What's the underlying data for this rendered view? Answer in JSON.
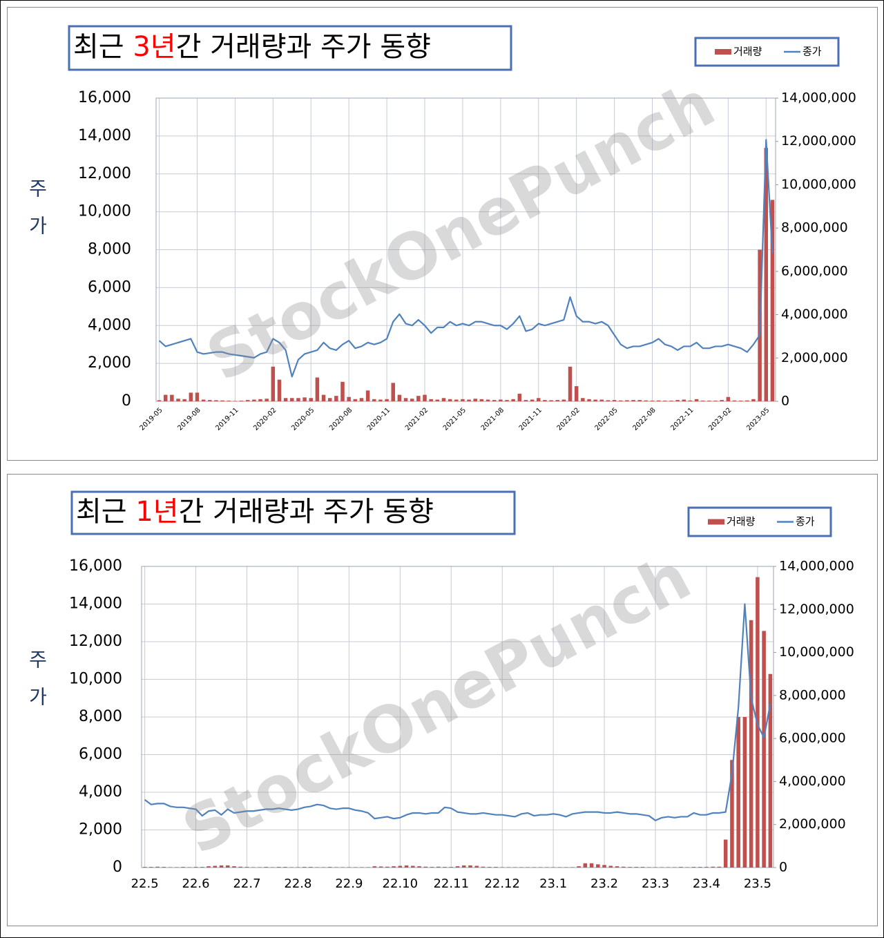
{
  "chart_data": [
    {
      "type": "combo",
      "title": [
        "최근 ",
        "3년",
        "간 거래량과 주가 동향"
      ],
      "title_colors": [
        "#000000",
        "#ff0000",
        "#000000"
      ],
      "ylabel": "주가",
      "watermark": "StockOnePunch",
      "xtick_rotation": -45,
      "categories": [
        "2019-05",
        null,
        null,
        null,
        null,
        null,
        "2019-08",
        null,
        null,
        null,
        null,
        null,
        "2019-11",
        null,
        null,
        null,
        null,
        null,
        "2020-02",
        null,
        null,
        null,
        null,
        null,
        "2020-05",
        null,
        null,
        null,
        null,
        null,
        "2020-08",
        null,
        null,
        null,
        null,
        null,
        "2020-11",
        null,
        null,
        null,
        null,
        null,
        "2021-02",
        null,
        null,
        null,
        null,
        null,
        "2021-05",
        null,
        null,
        null,
        null,
        null,
        "2021-08",
        null,
        null,
        null,
        null,
        null,
        "2021-11",
        null,
        null,
        null,
        null,
        null,
        "2022-02",
        null,
        null,
        null,
        null,
        null,
        "2022-05",
        null,
        null,
        null,
        null,
        null,
        "2022-08",
        null,
        null,
        null,
        null,
        null,
        "2022-11",
        null,
        null,
        null,
        null,
        null,
        "2023-02",
        null,
        null,
        null,
        null,
        null,
        "2023-05",
        null
      ],
      "series": [
        {
          "name": "거래량",
          "type": "bar",
          "axis": "y2",
          "color": "#c0504d",
          "values": [
            50000,
            300000,
            300000,
            120000,
            100000,
            400000,
            400000,
            80000,
            60000,
            50000,
            40000,
            30000,
            20000,
            30000,
            60000,
            80000,
            100000,
            120000,
            1600000,
            1000000,
            150000,
            150000,
            150000,
            180000,
            150000,
            1100000,
            300000,
            150000,
            250000,
            900000,
            200000,
            100000,
            150000,
            500000,
            100000,
            80000,
            100000,
            850000,
            300000,
            150000,
            120000,
            250000,
            300000,
            100000,
            80000,
            150000,
            100000,
            80000,
            100000,
            80000,
            120000,
            100000,
            80000,
            60000,
            80000,
            60000,
            100000,
            350000,
            60000,
            80000,
            150000,
            60000,
            50000,
            60000,
            80000,
            1600000,
            700000,
            150000,
            100000,
            80000,
            80000,
            50000,
            60000,
            40000,
            50000,
            60000,
            60000,
            40000,
            30000,
            40000,
            30000,
            30000,
            60000,
            80000,
            40000,
            100000,
            30000,
            30000,
            30000,
            60000,
            200000,
            40000,
            30000,
            40000,
            100000,
            7000000,
            11700000,
            9300000
          ]
        },
        {
          "name": "종가",
          "type": "line",
          "color": "#4f81bd",
          "values": [
            3200,
            2900,
            3000,
            3100,
            3200,
            3300,
            2600,
            2500,
            2550,
            2600,
            2600,
            2500,
            2450,
            2400,
            2350,
            2300,
            2500,
            2600,
            3300,
            3100,
            2700,
            1300,
            2200,
            2500,
            2600,
            2700,
            3100,
            2800,
            2700,
            3000,
            3200,
            2800,
            2900,
            3100,
            3000,
            3100,
            3300,
            4200,
            4600,
            4100,
            4000,
            4300,
            4000,
            3600,
            3900,
            3900,
            4200,
            4000,
            4100,
            4000,
            4200,
            4200,
            4100,
            4000,
            4000,
            3800,
            4100,
            4500,
            3700,
            3800,
            4100,
            4000,
            4100,
            4200,
            4300,
            5500,
            4500,
            4200,
            4200,
            4100,
            4200,
            4000,
            3500,
            3000,
            2800,
            2900,
            2900,
            3000,
            3100,
            3300,
            3000,
            2900,
            2700,
            2900,
            2900,
            3100,
            2800,
            2800,
            2900,
            2900,
            3000,
            2900,
            2800,
            2600,
            3000,
            3500,
            13800,
            7800
          ]
        }
      ],
      "ylim": [
        0,
        16000
      ],
      "yticks": [
        0,
        {
          "value": 2000,
          "label": "2,000"
        },
        {
          "value": 4000,
          "label": "4,000"
        },
        {
          "value": 6000,
          "label": "6,000"
        },
        {
          "value": 8000,
          "label": "8,000"
        },
        {
          "value": 10000,
          "label": "10,000"
        },
        {
          "value": 12000,
          "label": "12,000"
        },
        {
          "value": 14000,
          "label": "14,000"
        },
        {
          "value": 16000,
          "label": "16,000"
        }
      ],
      "y2lim": [
        0,
        14000000
      ],
      "y2ticks": [
        0,
        {
          "value": 2000000,
          "label": "2,000,000"
        },
        {
          "value": 4000000,
          "label": "4,000,000"
        },
        {
          "value": 6000000,
          "label": "6,000,000"
        },
        {
          "value": 8000000,
          "label": "8,000,000"
        },
        {
          "value": 10000000,
          "label": "10,000,000"
        },
        {
          "value": 12000000,
          "label": "12,000,000"
        },
        {
          "value": 14000000,
          "label": "14,000,000"
        }
      ],
      "grid": true
    },
    {
      "type": "combo",
      "title": [
        "최근 ",
        "1년",
        "간 거래량과 주가 동향"
      ],
      "title_colors": [
        "#000000",
        "#ff0000",
        "#000000"
      ],
      "ylabel": "주가",
      "watermark": "StockOnePunch",
      "xtick_rotation": 0,
      "categories": [
        "22.5",
        null,
        null,
        null,
        null,
        null,
        null,
        null,
        "22.6",
        null,
        null,
        null,
        null,
        null,
        null,
        null,
        "22.7",
        null,
        null,
        null,
        null,
        null,
        null,
        null,
        "22.8",
        null,
        null,
        null,
        null,
        null,
        null,
        null,
        "22.9",
        null,
        null,
        null,
        null,
        null,
        null,
        null,
        "22.10",
        null,
        null,
        null,
        null,
        null,
        null,
        null,
        "22.11",
        null,
        null,
        null,
        null,
        null,
        null,
        null,
        "22.12",
        null,
        null,
        null,
        null,
        null,
        null,
        null,
        "23.1",
        null,
        null,
        null,
        null,
        null,
        null,
        null,
        "23.2",
        null,
        null,
        null,
        null,
        null,
        null,
        null,
        "23.3",
        null,
        null,
        null,
        null,
        null,
        null,
        null,
        "23.4",
        null,
        null,
        null,
        null,
        null,
        null,
        null,
        "23.5",
        null,
        null
      ],
      "series": [
        {
          "name": "거래량",
          "type": "bar",
          "axis": "y2",
          "color": "#c0504d",
          "values": [
            30000,
            30000,
            40000,
            30000,
            20000,
            20000,
            30000,
            20000,
            30000,
            30000,
            60000,
            80000,
            100000,
            100000,
            60000,
            40000,
            30000,
            20000,
            20000,
            30000,
            20000,
            30000,
            30000,
            20000,
            20000,
            30000,
            30000,
            20000,
            20000,
            30000,
            20000,
            20000,
            20000,
            20000,
            20000,
            20000,
            60000,
            50000,
            40000,
            60000,
            80000,
            100000,
            80000,
            60000,
            40000,
            30000,
            40000,
            30000,
            30000,
            60000,
            100000,
            100000,
            80000,
            40000,
            30000,
            30000,
            20000,
            20000,
            20000,
            20000,
            20000,
            20000,
            20000,
            20000,
            20000,
            20000,
            20000,
            20000,
            60000,
            200000,
            200000,
            150000,
            120000,
            80000,
            60000,
            40000,
            30000,
            30000,
            30000,
            20000,
            20000,
            20000,
            20000,
            20000,
            30000,
            20000,
            30000,
            30000,
            30000,
            40000,
            40000,
            1300000,
            5000000,
            7000000,
            7000000,
            11500000,
            13500000,
            11000000,
            9000000
          ]
        },
        {
          "name": "종가",
          "type": "line",
          "color": "#4f81bd",
          "values": [
            3600,
            3350,
            3400,
            3400,
            3250,
            3200,
            3200,
            3150,
            3100,
            2750,
            3000,
            3050,
            2800,
            3100,
            2900,
            2950,
            3000,
            3000,
            3050,
            3100,
            3100,
            3150,
            3100,
            3050,
            3100,
            3200,
            3250,
            3350,
            3300,
            3150,
            3100,
            3150,
            3150,
            3050,
            3000,
            2900,
            2600,
            2650,
            2700,
            2600,
            2650,
            2800,
            2900,
            2900,
            2850,
            2900,
            2900,
            3200,
            3150,
            2950,
            2900,
            2850,
            2850,
            2900,
            2850,
            2800,
            2800,
            2750,
            2700,
            2850,
            2900,
            2750,
            2800,
            2800,
            2850,
            2800,
            2700,
            2850,
            2900,
            2950,
            2950,
            2950,
            2900,
            2900,
            2950,
            2900,
            2850,
            2850,
            2800,
            2750,
            2500,
            2650,
            2700,
            2650,
            2700,
            2700,
            2900,
            2800,
            2800,
            2900,
            2900,
            2950,
            5000,
            8500,
            14000,
            9000,
            7600,
            6900,
            8700
          ]
        }
      ],
      "ylim": [
        0,
        16000
      ],
      "yticks": [
        0,
        {
          "value": 2000,
          "label": "2,000"
        },
        {
          "value": 4000,
          "label": "4,000"
        },
        {
          "value": 6000,
          "label": "6,000"
        },
        {
          "value": 8000,
          "label": "8,000"
        },
        {
          "value": 10000,
          "label": "10,000"
        },
        {
          "value": 12000,
          "label": "12,000"
        },
        {
          "value": 14000,
          "label": "14,000"
        },
        {
          "value": 16000,
          "label": "16,000"
        }
      ],
      "y2lim": [
        0,
        14000000
      ],
      "y2ticks": [
        0,
        {
          "value": 2000000,
          "label": "2,000,000"
        },
        {
          "value": 4000000,
          "label": "4,000,000"
        },
        {
          "value": 6000000,
          "label": "6,000,000"
        },
        {
          "value": 8000000,
          "label": "8,000,000"
        },
        {
          "value": 10000000,
          "label": "10,000,000"
        },
        {
          "value": 12000000,
          "label": "12,000,000"
        },
        {
          "value": 14000000,
          "label": "14,000,000"
        }
      ],
      "grid": true
    }
  ]
}
